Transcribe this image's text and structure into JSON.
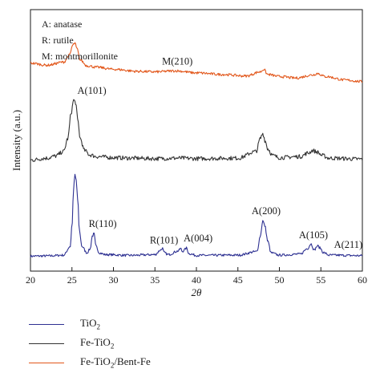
{
  "chart_data": {
    "type": "line",
    "xlabel": "2θ",
    "ylabel": "Intensity (a.u.)",
    "xlim": [
      20,
      60
    ],
    "xticks": [
      "20",
      "25",
      "30",
      "35",
      "40",
      "45",
      "50",
      "55",
      "60"
    ],
    "grid": false,
    "legend_position": "bottom",
    "key_lines": [
      "A: anatase",
      "R: rutile",
      "M: montmorillonite"
    ],
    "series": [
      {
        "name": "TiO2",
        "display_name": {
          "base": "TiO",
          "sub": "2"
        },
        "color": "#2e3192",
        "offset": 0,
        "x": [
          20,
          22,
          24,
          24.8,
          25.0,
          25.2,
          25.35,
          25.5,
          25.7,
          25.9,
          26.2,
          26.8,
          27.2,
          27.45,
          27.65,
          27.9,
          28.3,
          29,
          32,
          35,
          35.7,
          35.9,
          36.1,
          36.6,
          37.8,
          38.1,
          38.3,
          38.6,
          38.8,
          39.1,
          40,
          45,
          47.3,
          47.7,
          48.0,
          48.25,
          48.6,
          49.0,
          50,
          52.5,
          53.4,
          53.8,
          54.2,
          54.6,
          54.9,
          55.3,
          56,
          60
        ],
        "y": [
          0.2,
          0.3,
          0.6,
          4,
          12,
          26,
          32,
          30,
          22,
          10,
          4,
          1.5,
          3,
          8,
          9,
          4,
          1.5,
          0.8,
          0.5,
          0.8,
          2.6,
          3.3,
          1.6,
          0.8,
          2.2,
          3.2,
          2,
          2.8,
          3.4,
          1.2,
          0.5,
          0.6,
          2,
          8,
          14,
          12,
          6,
          1.5,
          0.6,
          1,
          3.2,
          5,
          2.6,
          4.2,
          3.4,
          1.6,
          0.6,
          0.4
        ]
      },
      {
        "name": "Fe-TiO2",
        "display_name": {
          "base": "Fe-TiO",
          "sub": "2"
        },
        "color": "#333333",
        "offset": 37,
        "x": [
          20,
          22,
          23,
          24,
          24.5,
          24.9,
          25.2,
          25.45,
          25.7,
          26.0,
          26.5,
          27.2,
          28,
          30,
          32,
          35,
          38,
          40,
          45,
          47.2,
          47.7,
          48.0,
          48.3,
          48.6,
          49.2,
          50,
          52.5,
          53.5,
          54.0,
          54.5,
          55.2,
          56,
          60
        ],
        "y": [
          0.6,
          1.4,
          2.2,
          4,
          9,
          19,
          24,
          23,
          16,
          9,
          4.4,
          2.6,
          2,
          1.6,
          1.4,
          1.2,
          1.4,
          1.2,
          1.4,
          4,
          9,
          11,
          8,
          5,
          2.4,
          1.6,
          2,
          3.4,
          4.4,
          3.8,
          2.4,
          1.4,
          1
        ]
      },
      {
        "name": "Fe-TiO2/Bent-Fe",
        "display_name": {
          "base": "Fe-TiO",
          "sub": "2",
          "suffix": "/Bent-Fe"
        },
        "color": "#e2571b",
        "offset": 70,
        "x": [
          20,
          22,
          24,
          24.7,
          25.1,
          25.35,
          25.6,
          26.0,
          26.8,
          28,
          30,
          33,
          35,
          37.5,
          40,
          43,
          46,
          47.7,
          48.1,
          48.6,
          50,
          52,
          54,
          54.6,
          55.5,
          58,
          60
        ],
        "y": [
          5.4,
          4.6,
          5.8,
          8.5,
          12.4,
          13.2,
          11,
          6.6,
          4.4,
          3.8,
          3,
          2.2,
          2,
          2.4,
          1.6,
          1,
          0.4,
          2,
          3,
          1,
          0.2,
          -0.4,
          0.8,
          1.4,
          0.2,
          -1.2,
          -1.8
        ]
      }
    ],
    "annotations": [
      {
        "text": "M(210)",
        "series": "Fe-TiO2/Bent-Fe",
        "x": 37.7
      },
      {
        "text": "A(101)",
        "series": "Fe-TiO2",
        "x": 27.4
      },
      {
        "text": "R(110)",
        "series": "TiO2",
        "x": 28.7
      },
      {
        "text": "R(101)",
        "series": "TiO2",
        "x": 36.1
      },
      {
        "text": "A(004)",
        "series": "TiO2",
        "x": 40.2
      },
      {
        "text": "A(200)",
        "series": "TiO2",
        "x": 48.4
      },
      {
        "text": "A(105)",
        "series": "TiO2",
        "x": 54.1
      },
      {
        "text": "A(211)",
        "series": "TiO2",
        "x": 58.3
      }
    ]
  }
}
